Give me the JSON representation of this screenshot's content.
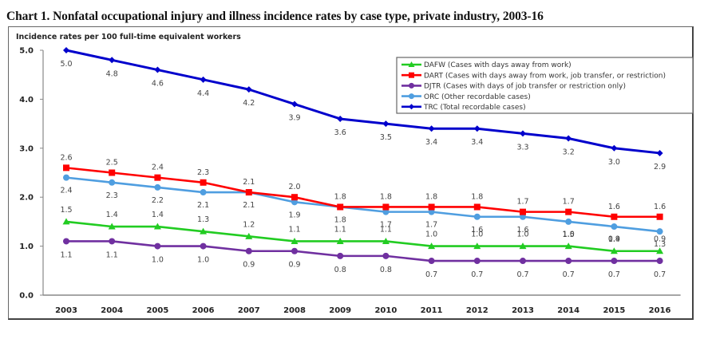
{
  "chart_data": {
    "type": "line",
    "title": "Chart 1. Nonfatal occupational injury and illness incidence rates by case type, private industry, 2003-16",
    "ylabel": "Incidence rates per 100 full-time equivalent workers",
    "xlabel": "",
    "x": [
      "2003",
      "2004",
      "2005",
      "2006",
      "2007",
      "2008",
      "2009",
      "2010",
      "2011",
      "2012",
      "2013",
      "2014",
      "2015",
      "2016"
    ],
    "ylim": [
      0,
      5
    ],
    "yticks": [
      "0.0",
      "1.0",
      "2.0",
      "3.0",
      "4.0",
      "5.0"
    ],
    "ytick_values": [
      0,
      1,
      2,
      3,
      4,
      5
    ],
    "grid": false,
    "legend_position": "top-right",
    "series": [
      {
        "key": "DAFW",
        "name": "DAFW (Cases with days away from work)",
        "color": "#22cc22",
        "marker": "triangle",
        "values": [
          1.5,
          1.4,
          1.4,
          1.3,
          1.2,
          1.1,
          1.1,
          1.1,
          1.0,
          1.0,
          1.0,
          1.0,
          0.9,
          0.9
        ],
        "label_position": "above"
      },
      {
        "key": "DART",
        "name": "DART (Cases with days away from work, job transfer, or restriction)",
        "color": "#ff0000",
        "marker": "square",
        "values": [
          2.6,
          2.5,
          2.4,
          2.3,
          2.1,
          2.0,
          1.8,
          1.8,
          1.8,
          1.8,
          1.7,
          1.7,
          1.6,
          1.6
        ],
        "label_position": "above"
      },
      {
        "key": "DJTR",
        "name": "DJTR (Cases with days of job transfer or restriction only)",
        "color": "#7030a0",
        "marker": "circle",
        "values": [
          1.1,
          1.1,
          1.0,
          1.0,
          0.9,
          0.9,
          0.8,
          0.8,
          0.7,
          0.7,
          0.7,
          0.7,
          0.7,
          0.7
        ],
        "label_position": "below"
      },
      {
        "key": "ORC",
        "name": "ORC (Other recordable cases)",
        "color": "#4f9ee0",
        "marker": "circle",
        "values": [
          2.4,
          2.3,
          2.2,
          2.1,
          2.1,
          1.9,
          1.8,
          1.7,
          1.7,
          1.6,
          1.6,
          1.5,
          1.4,
          1.3
        ],
        "label_position": "below"
      },
      {
        "key": "TRC",
        "name": "TRC (Total recordable cases)",
        "color": "#0000cc",
        "marker": "diamond",
        "values": [
          5.0,
          4.8,
          4.6,
          4.4,
          4.2,
          3.9,
          3.6,
          3.5,
          3.4,
          3.4,
          3.3,
          3.2,
          3.0,
          2.9
        ],
        "label_position": "below"
      }
    ]
  }
}
